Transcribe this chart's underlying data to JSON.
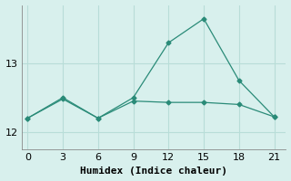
{
  "x": [
    0,
    3,
    6,
    9,
    12,
    15,
    18,
    21
  ],
  "line1_y": [
    12.2,
    12.5,
    12.2,
    12.5,
    13.3,
    13.65,
    12.75,
    12.22
  ],
  "line2_y": [
    12.2,
    12.48,
    12.2,
    12.45,
    12.43,
    12.43,
    12.4,
    12.22
  ],
  "line_color": "#2a8b78",
  "bg_color": "#d8f0ed",
  "grid_color": "#b8ddd8",
  "xlabel": "Humidex (Indice chaleur)",
  "xticks": [
    0,
    3,
    6,
    9,
    12,
    15,
    18,
    21
  ],
  "yticks": [
    12,
    13
  ],
  "ylim": [
    11.75,
    13.85
  ],
  "xlim": [
    -0.5,
    22
  ],
  "xlabel_fontsize": 8,
  "tick_fontsize": 8,
  "marker": "D",
  "markersize": 2.5,
  "linewidth": 0.9
}
